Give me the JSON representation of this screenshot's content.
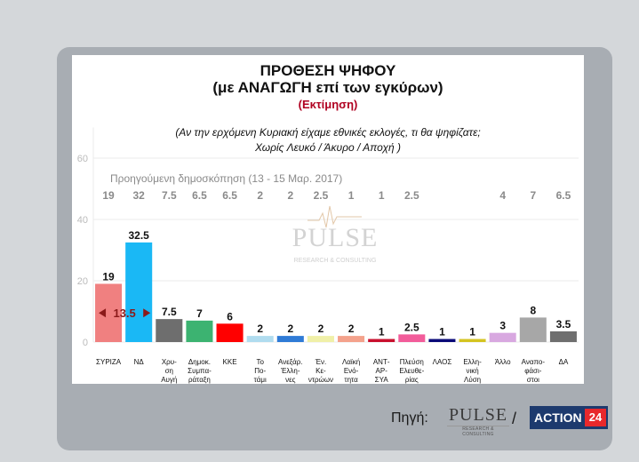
{
  "titles": {
    "main": "ΠΡΟΘΕΣΗ ΨΗΦΟΥ",
    "sub": "(με ΑΝΑΓΩΓΗ επί των εγκύρων)",
    "estimate": "(Εκτίμηση)"
  },
  "question": {
    "line1": "(Αν την ερχόμενη Κυριακή είχαμε εθνικές εκλογές, τι θα ψηφίζατε;",
    "line2": "Χωρίς Λευκό / Άκυρο / Αποχή )"
  },
  "footer": {
    "source_label": "Πηγή:",
    "slash": "/",
    "pulse_name": "PULSE",
    "pulse_sub": "RESEARCH & CONSULTING",
    "action_label": "ACTION",
    "action_number": "24"
  },
  "watermark": {
    "name": "PULSE",
    "sub": "RESEARCH & CONSULTING"
  },
  "colors": {
    "bars": [
      "#f08080",
      "#1ab8f5",
      "#6e6e6e",
      "#3cb371",
      "#ff0000",
      "#b0dcef",
      "#2f7bd6",
      "#f0f0a8",
      "#f4a28c",
      "#c8102e",
      "#f25c9a",
      "#0a0a78",
      "#d4c421",
      "#d8a8e0",
      "#a7a7a7",
      "#6f6f6f"
    ],
    "axis_text": "#bbbbbb",
    "previous_text": "#8a8a8a",
    "gap_arrow": "#8b1a1a"
  },
  "chart_data": {
    "type": "bar",
    "categories": [
      [
        "ΣΥΡΙΖΑ"
      ],
      [
        "ΝΔ"
      ],
      [
        "Χρυ-",
        "ση",
        "Αυγή"
      ],
      [
        "Δημοκ.",
        "Συμπα-",
        "ράταξη"
      ],
      [
        "ΚΚΕ"
      ],
      [
        "Το",
        "Πο-",
        "τάμι"
      ],
      [
        "Ανεξάρ.",
        "Έλλη-",
        "νες"
      ],
      [
        "Έν.",
        "Κε-",
        "ντρώων"
      ],
      [
        "Λαϊκή",
        "Ενό-",
        "τητα"
      ],
      [
        "ΑΝΤ-",
        "ΑΡ-",
        "ΣΥΑ"
      ],
      [
        "Πλεύση",
        "Ελευθε-",
        "ρίας"
      ],
      [
        "ΛΑΟΣ"
      ],
      [
        "Ελλη-",
        "νική",
        "Λύση"
      ],
      [
        "Άλλο"
      ],
      [
        "Αναπο-",
        "φάσι-",
        "στοι"
      ],
      [
        "ΔΑ"
      ]
    ],
    "series": [
      {
        "values": [
          19,
          32.5,
          7.5,
          7,
          6,
          2,
          2,
          2,
          2,
          1,
          2.5,
          1,
          1,
          3,
          8,
          3.5
        ],
        "labels": [
          "19",
          "32.5",
          "7.5",
          "7",
          "6",
          "2",
          "2",
          "2",
          "2",
          "1",
          "2.5",
          "1",
          "1",
          "3",
          "8",
          "3.5"
        ]
      }
    ],
    "previous_poll": {
      "label": "Προηγούμενη δημοσκόπηση (13 - 15 Μαρ. 2017)",
      "values": [
        "19",
        "32",
        "7.5",
        "6.5",
        "6.5",
        "2",
        "2",
        "2.5",
        "1",
        "1",
        "2.5",
        "",
        "",
        "4",
        "7",
        "6.5"
      ]
    },
    "annotation": {
      "text": "13.5",
      "from_category": 0,
      "to_category": 1
    },
    "ylim": [
      0,
      70
    ],
    "yticks": [
      0,
      20,
      40,
      60
    ],
    "grid": true,
    "title": "ΠΡΟΘΕΣΗ ΨΗΦΟΥ"
  }
}
